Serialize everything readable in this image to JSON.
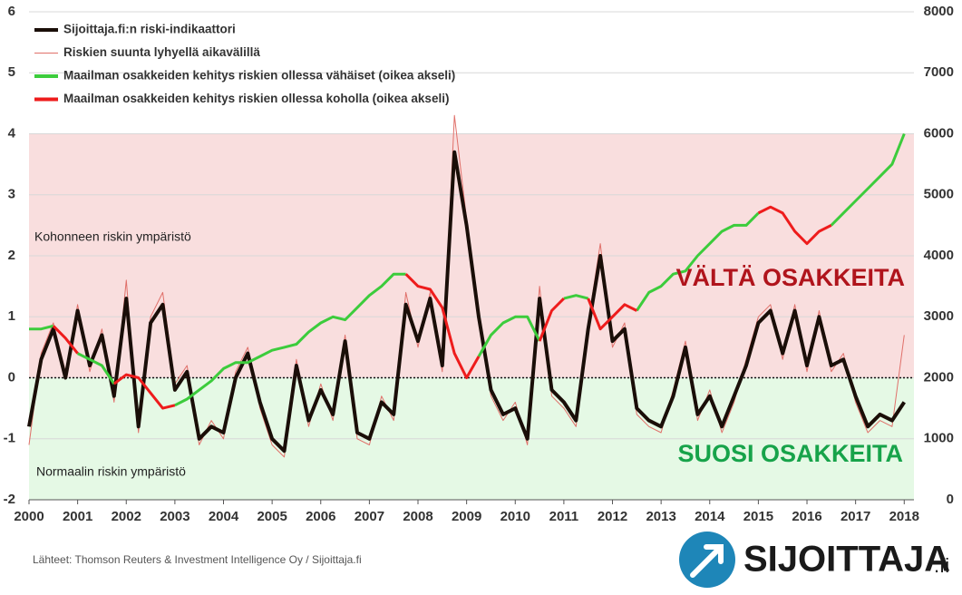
{
  "chart_data": {
    "type": "line",
    "legend_position": "upper left",
    "grid": true,
    "x": [
      2000,
      2000.25,
      2000.5,
      2000.75,
      2001,
      2001.25,
      2001.5,
      2001.75,
      2002,
      2002.25,
      2002.5,
      2002.75,
      2003,
      2003.25,
      2003.5,
      2003.75,
      2004,
      2004.25,
      2004.5,
      2004.75,
      2005,
      2005.25,
      2005.5,
      2005.75,
      2006,
      2006.25,
      2006.5,
      2006.75,
      2007,
      2007.25,
      2007.5,
      2007.75,
      2008,
      2008.25,
      2008.5,
      2008.75,
      2009,
      2009.25,
      2009.5,
      2009.75,
      2010,
      2010.25,
      2010.5,
      2010.75,
      2011,
      2011.25,
      2011.5,
      2011.75,
      2012,
      2012.25,
      2012.5,
      2012.75,
      2013,
      2013.25,
      2013.5,
      2013.75,
      2014,
      2014.25,
      2014.5,
      2014.75,
      2015,
      2015.25,
      2015.5,
      2015.75,
      2016,
      2016.25,
      2016.5,
      2016.75,
      2017,
      2017.25,
      2017.5,
      2017.75,
      2018
    ],
    "xlim": [
      2000,
      2018.2
    ],
    "xticks": [
      2000,
      2001,
      2002,
      2003,
      2004,
      2005,
      2006,
      2007,
      2008,
      2009,
      2010,
      2011,
      2012,
      2013,
      2014,
      2015,
      2016,
      2017,
      2018
    ],
    "ylim": [
      -2,
      6
    ],
    "yticks": [
      -2,
      -1,
      0,
      1,
      2,
      3,
      4,
      5,
      6
    ],
    "y2lim": [
      0,
      8000
    ],
    "y2ticks": [
      0,
      1000,
      2000,
      3000,
      4000,
      5000,
      6000,
      7000,
      8000
    ],
    "bands": [
      {
        "from": 0,
        "to": 4,
        "color": "#f9dede"
      },
      {
        "from": -2,
        "to": 0,
        "color": "#e5f9e5"
      }
    ],
    "threshold": 0,
    "series": [
      {
        "name": "Sijoittaja.fi:n riski-indikaattori",
        "color": "#1a0e08",
        "values": [
          -0.8,
          0.3,
          0.8,
          0.0,
          1.1,
          0.2,
          0.7,
          -0.3,
          1.3,
          -0.8,
          0.9,
          1.2,
          -0.2,
          0.1,
          -1.0,
          -0.8,
          -0.9,
          0.0,
          0.4,
          -0.4,
          -1.0,
          -1.2,
          0.2,
          -0.7,
          -0.2,
          -0.6,
          0.6,
          -0.9,
          -1.0,
          -0.4,
          -0.6,
          1.2,
          0.6,
          1.3,
          0.2,
          3.7,
          2.5,
          1.0,
          -0.2,
          -0.6,
          -0.5,
          -1.0,
          1.3,
          -0.2,
          -0.4,
          -0.7,
          0.8,
          2.0,
          0.6,
          0.8,
          -0.5,
          -0.7,
          -0.8,
          -0.3,
          0.5,
          -0.6,
          -0.3,
          -0.8,
          -0.3,
          0.2,
          0.9,
          1.1,
          0.4,
          1.1,
          0.2,
          1.0,
          0.2,
          0.3,
          -0.3,
          -0.8,
          -0.6,
          -0.7,
          -0.4
        ]
      },
      {
        "name": "Riskien suunta lyhyellä aikavälillä",
        "color": "#e0706a",
        "values": [
          -1.1,
          0.4,
          0.9,
          0.1,
          1.2,
          0.1,
          0.8,
          -0.4,
          1.6,
          -0.9,
          1.0,
          1.4,
          -0.1,
          0.2,
          -1.1,
          -0.7,
          -1.0,
          0.1,
          0.5,
          -0.5,
          -1.1,
          -1.3,
          0.3,
          -0.8,
          -0.1,
          -0.7,
          0.7,
          -1.0,
          -1.1,
          -0.3,
          -0.7,
          1.4,
          0.5,
          1.4,
          0.1,
          4.3,
          2.6,
          0.9,
          -0.3,
          -0.7,
          -0.4,
          -1.1,
          1.5,
          -0.3,
          -0.5,
          -0.8,
          0.9,
          2.2,
          0.5,
          0.9,
          -0.6,
          -0.8,
          -0.9,
          -0.2,
          0.6,
          -0.7,
          -0.2,
          -0.9,
          -0.4,
          0.3,
          1.0,
          1.2,
          0.3,
          1.2,
          0.1,
          1.1,
          0.1,
          0.4,
          -0.4,
          -0.9,
          -0.7,
          -0.8,
          0.7
        ]
      },
      {
        "name": "Maailman osakkeiden kehitys riskien ollessa vähäiset (oikea akseli)",
        "color": "#3ccc3c",
        "axis": "y2",
        "values": [
          2800,
          2800,
          2850,
          null,
          2400,
          2300,
          2200,
          1900,
          null,
          null,
          null,
          null,
          1550,
          1650,
          1800,
          1950,
          2150,
          2250,
          2250,
          2350,
          2450,
          2500,
          2550,
          2750,
          2900,
          3000,
          2950,
          3150,
          3350,
          3500,
          3700,
          3700,
          null,
          null,
          null,
          null,
          null,
          2350,
          2700,
          2900,
          3000,
          3000,
          2600,
          null,
          3300,
          3350,
          3300,
          null,
          null,
          null,
          3100,
          3400,
          3500,
          3700,
          3750,
          4000,
          4200,
          4400,
          4500,
          4500,
          4700,
          null,
          null,
          null,
          null,
          null,
          4500,
          4700,
          4900,
          5100,
          5300,
          5500,
          6000
        ]
      },
      {
        "name": "Maailman osakkeiden kehitys riskien ollessa koholla (oikea akseli)",
        "color": "#ee1c1c",
        "axis": "y2",
        "values": [
          null,
          null,
          2850,
          2650,
          2400,
          null,
          null,
          1900,
          2050,
          2000,
          1750,
          1500,
          1550,
          null,
          null,
          null,
          null,
          null,
          null,
          null,
          null,
          null,
          null,
          null,
          null,
          null,
          null,
          null,
          null,
          null,
          null,
          3700,
          3500,
          3450,
          3150,
          2400,
          2000,
          2350,
          null,
          null,
          null,
          null,
          2600,
          3100,
          3300,
          null,
          3300,
          2800,
          3000,
          3200,
          3100,
          null,
          null,
          null,
          null,
          null,
          null,
          null,
          null,
          null,
          4700,
          4800,
          4700,
          4400,
          4200,
          4400,
          4500,
          null,
          null,
          null,
          null,
          null,
          null
        ]
      }
    ],
    "annotations": {
      "high_zone": "Kohonneen riskin ympäristö",
      "normal_zone": "Normaalin riskin ympäristö",
      "avoid": "VÄLTÄ OSAKKEITA",
      "favor": "SUOSI OSAKKEITA"
    },
    "source": "Lähteet: Thomson Reuters & Investment Intelligence Oy / Sijoittaja.fi",
    "logo": {
      "name": "SIJOITTAJA",
      "suffix": ".fi"
    }
  }
}
